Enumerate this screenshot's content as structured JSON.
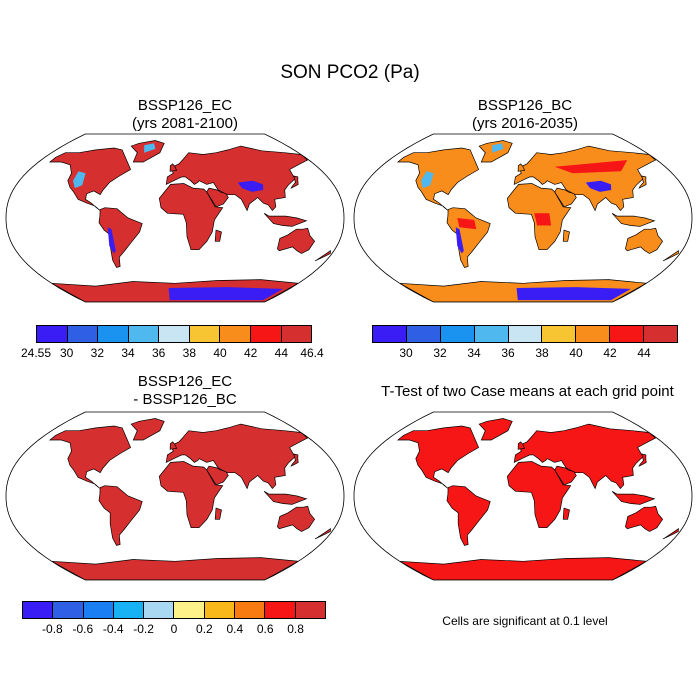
{
  "main_title": "SON PCO2 (Pa)",
  "panels": {
    "top_left": {
      "title_line1": "BSSP126_EC",
      "title_line2": "(yrs 2081-2100)"
    },
    "top_right": {
      "title_line1": "BSSP126_BC",
      "title_line2": "(yrs 2016-2035)"
    },
    "bottom_left": {
      "title_line1": "BSSP126_EC",
      "title_line2": "- BSSP126_BC"
    },
    "bottom_right": {
      "title_line1": "T-Test of two Case means at each grid point",
      "note": "Cells are significant at 0.1 level"
    }
  },
  "colorbars": {
    "pco2_left": {
      "colors": [
        "#3a1cf5",
        "#2f5fe5",
        "#1a93f0",
        "#4fb8ef",
        "#c9e4f2",
        "#f7c531",
        "#f98d1b",
        "#f71616",
        "#d62f2f"
      ],
      "labels": [
        "24.55",
        "30",
        "32",
        "34",
        "36",
        "38",
        "40",
        "42",
        "44",
        "46.4"
      ]
    },
    "pco2_right": {
      "colors": [
        "#3a1cf5",
        "#2f5fe5",
        "#1a93f0",
        "#4fb8ef",
        "#c9e4f2",
        "#f7c531",
        "#f98d1b",
        "#f71616",
        "#d62f2f"
      ],
      "labels": [
        "30",
        "32",
        "34",
        "36",
        "38",
        "40",
        "42",
        "44"
      ]
    },
    "difference": {
      "colors": [
        "#3a1cf5",
        "#2f5fe5",
        "#1a7ff2",
        "#16b2f4",
        "#a9d8f2",
        "#fdf28a",
        "#f8b81a",
        "#f77b10",
        "#f71616",
        "#d62f2f"
      ],
      "labels": [
        "-0.8",
        "-0.6",
        "-0.4",
        "-0.2",
        "0",
        "0.2",
        "0.4",
        "0.6",
        "0.8"
      ]
    }
  },
  "map_colors": {
    "ec_land": "#d62f2f",
    "bc_land": "#f98d1b",
    "diff_land": "#d62f2f",
    "ttest_land": "#f71616",
    "low_region": "#3a1cf5",
    "mid_region": "#4fb8ef",
    "high_region": "#f71616"
  }
}
